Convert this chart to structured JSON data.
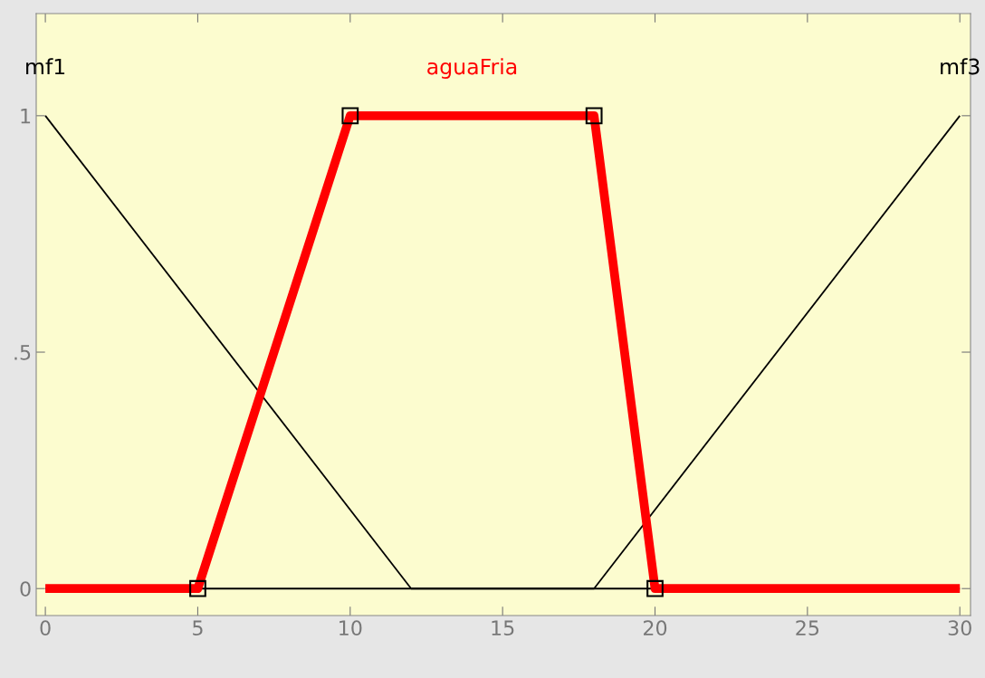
{
  "chart_data": {
    "type": "line",
    "xlim": [
      -0.3,
      30.35
    ],
    "ylim": [
      -0.057,
      1.216
    ],
    "xticks": [
      0,
      5,
      10,
      15,
      20,
      25,
      30
    ],
    "yticks": [
      0,
      {
        "value": 0.5,
        "label": ".5"
      },
      1
    ],
    "grid": false,
    "legend": false,
    "series": [
      {
        "name": "mf1",
        "color": "#000000",
        "x": [
          0,
          12,
          30
        ],
        "values": [
          1,
          0,
          0
        ]
      },
      {
        "name": "mf3",
        "color": "#000000",
        "x": [
          0,
          18,
          30
        ],
        "values": [
          0,
          0,
          1
        ]
      },
      {
        "name": "aguaFria",
        "color": "#ff0000",
        "x": [
          0,
          5,
          10,
          18,
          20,
          30
        ],
        "values": [
          0,
          0,
          1,
          1,
          0,
          0
        ],
        "marker": "square"
      }
    ]
  }
}
